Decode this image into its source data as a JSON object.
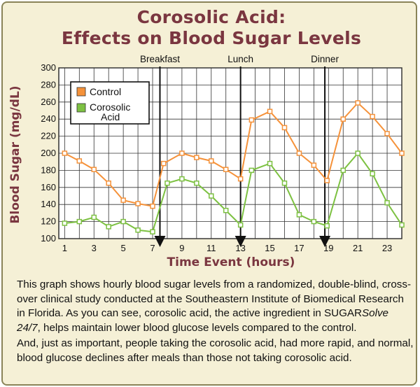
{
  "header": {
    "title_line1": "Corosolic Acid:",
    "title_line2": "Effects on Blood Sugar Levels"
  },
  "colors": {
    "title": "#7a3640",
    "control": "#f5923a",
    "corosolic": "#7dc142",
    "background": "#f5f0d6"
  },
  "chart_data": {
    "type": "line",
    "xlabel": "Time Event (hours)",
    "ylabel": "Blood Sugar (mg/dL)",
    "x_ticks": [
      1,
      3,
      5,
      7,
      9,
      11,
      13,
      15,
      17,
      19,
      21,
      23
    ],
    "y_ticks": [
      100,
      120,
      140,
      160,
      180,
      200,
      220,
      240,
      260,
      280,
      300
    ],
    "ylim": [
      100,
      300
    ],
    "xlim": [
      0.6,
      24
    ],
    "grid": true,
    "legend_position": "top-left",
    "events": [
      {
        "label": "Breakfast",
        "x": 7.5
      },
      {
        "label": "Lunch",
        "x": 13
      },
      {
        "label": "Dinner",
        "x": 18.75
      }
    ],
    "series": [
      {
        "name": "Control",
        "color": "#f5923a",
        "x": [
          1,
          2,
          3,
          4,
          5,
          6,
          7,
          7.75,
          9,
          10,
          11,
          12,
          13,
          13.75,
          15,
          16,
          17,
          18,
          18.9,
          20,
          21,
          22,
          23,
          24
        ],
        "values": [
          200,
          191,
          181,
          165,
          145,
          141,
          138,
          188,
          200,
          195,
          191,
          181,
          170,
          239,
          249,
          230,
          200,
          186,
          168,
          240,
          259,
          243,
          223,
          200
        ]
      },
      {
        "name": "Corosolic Acid",
        "legend_lines": [
          "Corosolic",
          "Acid"
        ],
        "color": "#7dc142",
        "x": [
          1,
          2,
          3,
          4,
          5,
          6,
          7,
          8,
          9,
          10,
          11,
          12,
          13,
          13.75,
          15,
          16,
          17,
          18,
          18.9,
          20,
          21,
          22,
          23,
          24
        ],
        "values": [
          118,
          120,
          125,
          114,
          120,
          110,
          108,
          165,
          170,
          165,
          150,
          133,
          116,
          180,
          188,
          165,
          128,
          120,
          115,
          180,
          200,
          176,
          142,
          116
        ]
      }
    ]
  },
  "description": {
    "p1_part1": "This graph shows hourly blood sugar levels from a randomized, double-blind, cross-over clinical study conducted at the Southeastern Institute of Biomedical Research in Florida. As you can see, corosolic acid, the active ingredient in SUGAR",
    "p1_italic": "Solve 24/7",
    "p1_part2": ", helps maintain lower blood glucose levels compared to the control.",
    "p2": "And, just as important, people taking the corosolic acid, had more rapid, and normal, blood glucose declines after meals than those not taking corosolic acid."
  }
}
